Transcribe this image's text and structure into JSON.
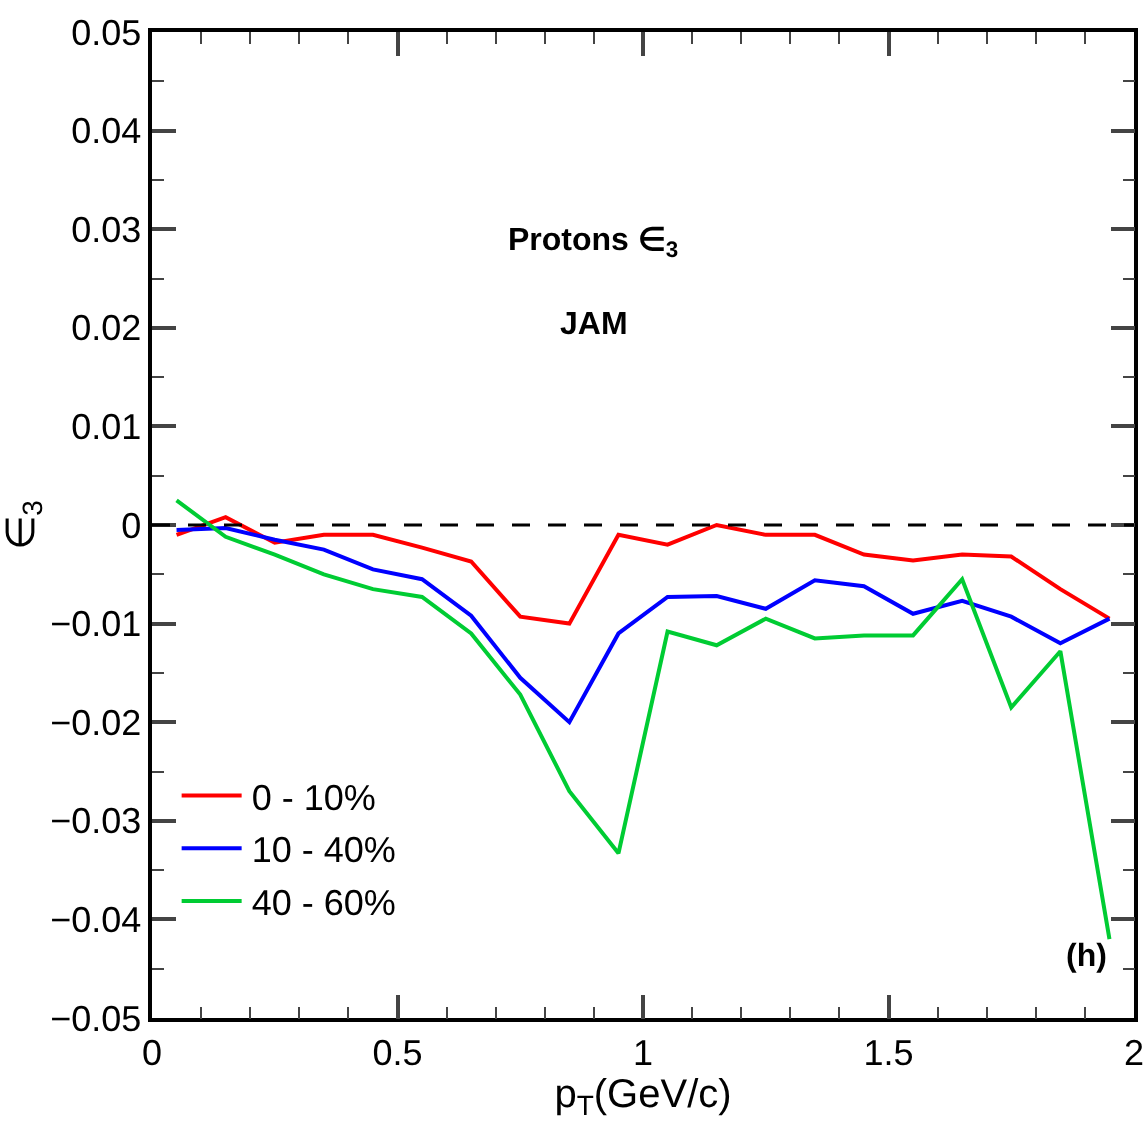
{
  "chart_data": {
    "type": "line",
    "xlabel": "p$_{T}$(GeV/c)",
    "ylabel": "∈$_{3}$",
    "annotations": [
      "Protons ∈$_{3}$",
      "JAM",
      "(h)"
    ],
    "x": [
      0.05,
      0.15,
      0.25,
      0.35,
      0.45,
      0.55,
      0.65,
      0.75,
      0.85,
      0.95,
      1.05,
      1.15,
      1.25,
      1.35,
      1.45,
      1.55,
      1.65,
      1.75,
      1.85,
      1.95
    ],
    "series": [
      {
        "name": "0 - 10%",
        "color": "#ff0000",
        "values": [
          -0.001,
          0.0008,
          -0.0018,
          -0.001,
          -0.001,
          -0.0023,
          -0.0037,
          -0.0093,
          -0.01,
          -0.001,
          -0.002,
          0,
          -0.001,
          -0.001,
          -0.003,
          -0.0036,
          -0.003,
          -0.0032,
          -0.0065,
          -0.0095
        ]
      },
      {
        "name": "10 - 40%",
        "color": "#0000ff",
        "values": [
          -0.0005,
          -0.0003,
          -0.0015,
          -0.0025,
          -0.0045,
          -0.0055,
          -0.0092,
          -0.0155,
          -0.02,
          -0.011,
          -0.0073,
          -0.0072,
          -0.0085,
          -0.0056,
          -0.0062,
          -0.009,
          -0.0077,
          -0.0093,
          -0.012,
          -0.0095
        ]
      },
      {
        "name": "40 - 60%",
        "color": "#00cc33",
        "values": [
          0.0025,
          -0.0012,
          -0.003,
          -0.005,
          -0.0065,
          -0.0073,
          -0.011,
          -0.0172,
          -0.027,
          -0.0333,
          -0.0108,
          -0.0122,
          -0.0095,
          -0.0115,
          -0.0112,
          -0.0112,
          -0.0055,
          -0.0185,
          -0.0128,
          -0.042
        ]
      }
    ],
    "xlim": [
      0,
      2
    ],
    "xticks": [
      0,
      0.5,
      1,
      1.5,
      2
    ],
    "ylim": [
      -0.05,
      0.05
    ],
    "yticks": [
      {
        "value": -0.05,
        "label": "−0.05"
      },
      {
        "value": -0.04,
        "label": "−0.04"
      },
      {
        "value": -0.03,
        "label": "−0.03"
      },
      {
        "value": -0.02,
        "label": "−0.02"
      },
      {
        "value": -0.01,
        "label": "−0.01"
      },
      0,
      0.01,
      0.02,
      0.03,
      0.04,
      0.05
    ],
    "ref_lines": [
      {
        "axis": "y",
        "value": 0,
        "color": "#000000",
        "line_style": "dashed"
      }
    ],
    "grid": false,
    "legend": "bottom left",
    "marker": "none",
    "line_style": "solid"
  }
}
